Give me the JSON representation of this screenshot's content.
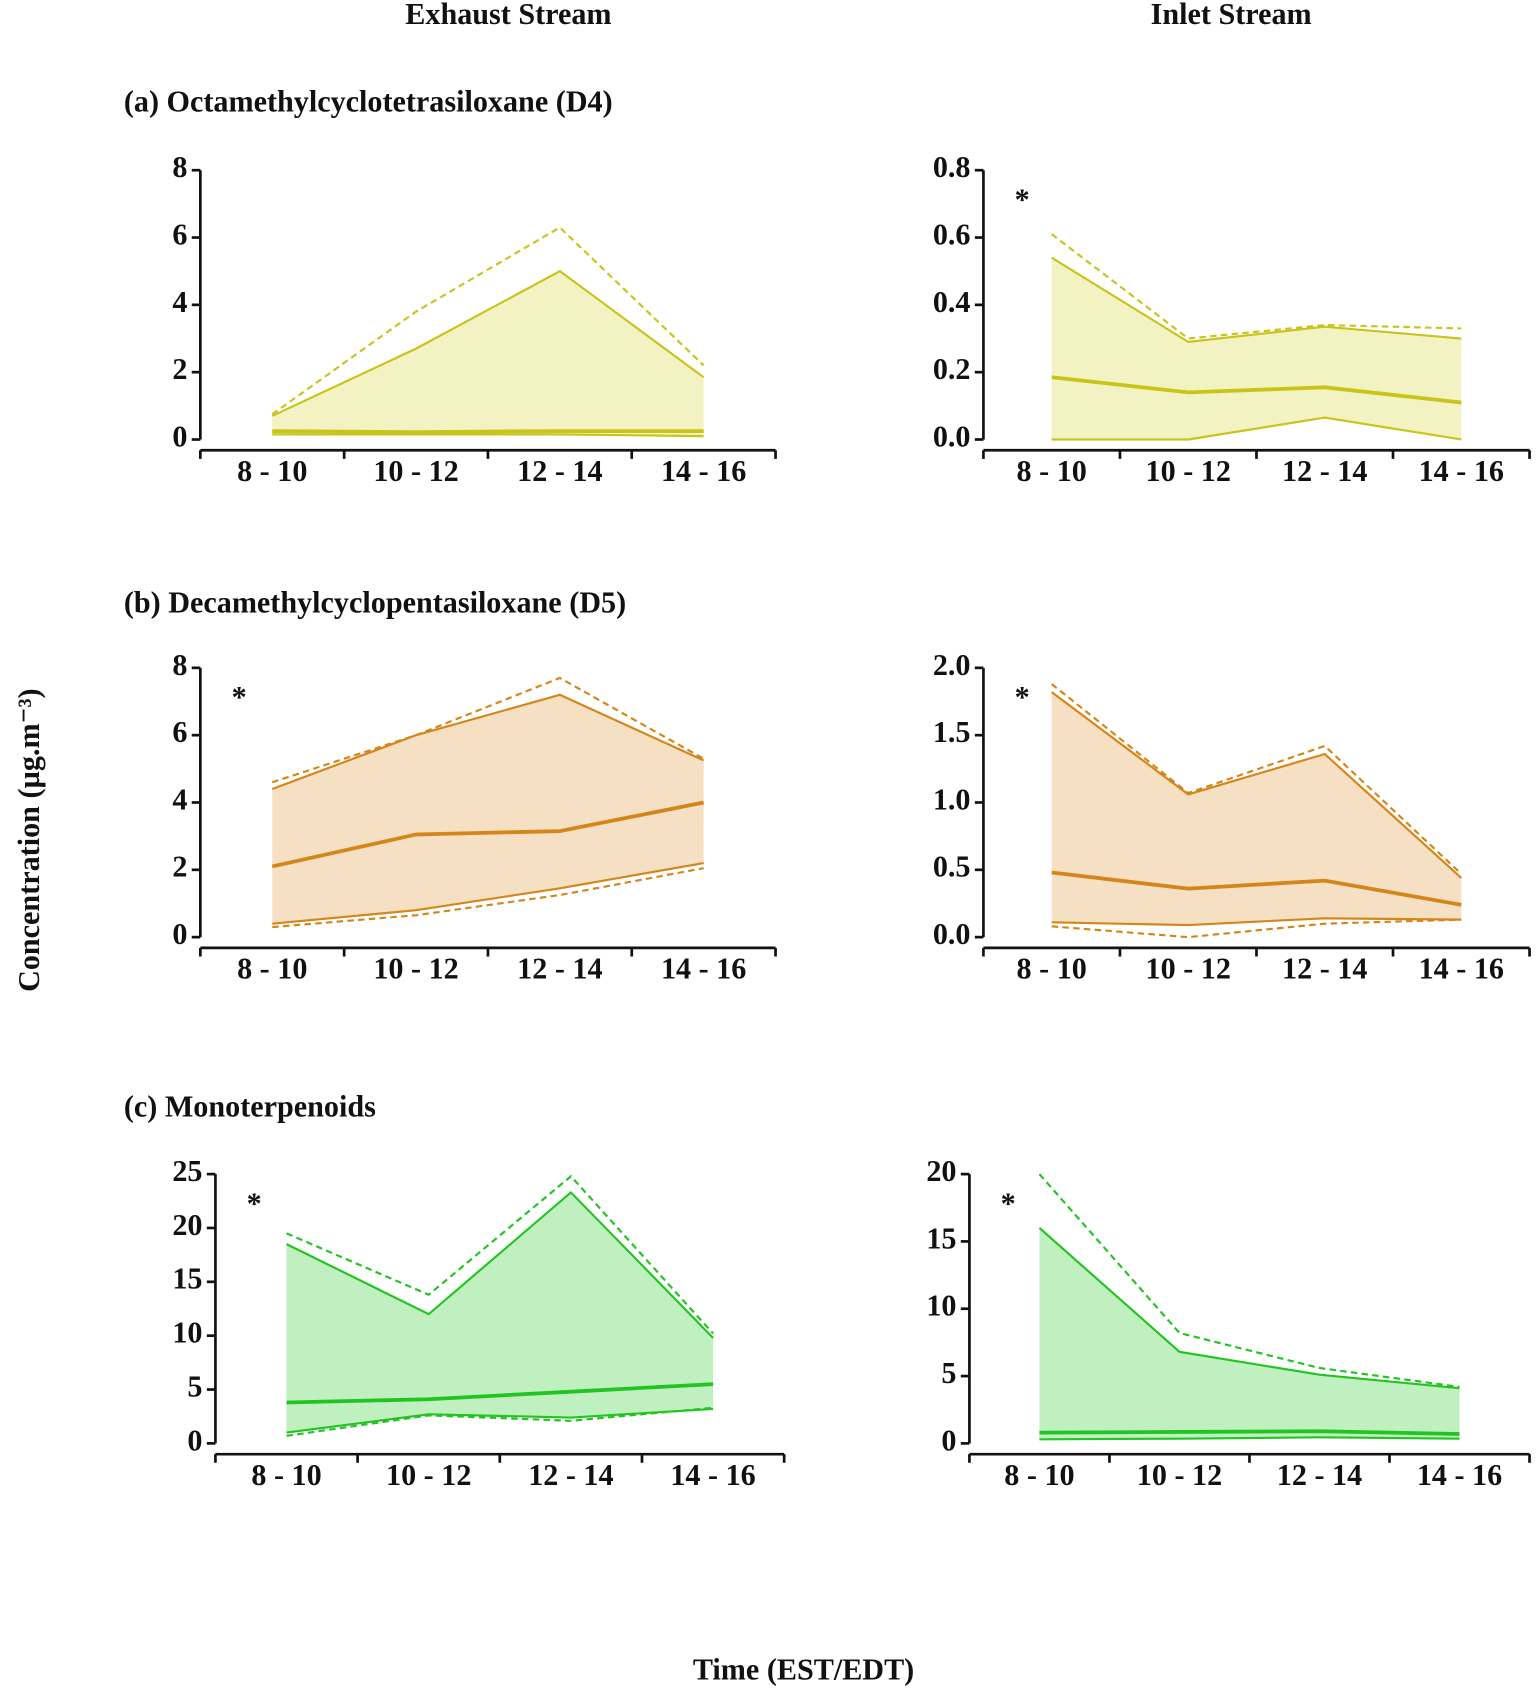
{
  "column_titles": [
    "Exhaust Stream",
    "Inlet Stream"
  ],
  "row_titles": [
    "(a) Octamethylcyclotetrasiloxane (D4)",
    "(b) Decamethylcyclopentasiloxane (D5)",
    "(c) Monoterpenoids"
  ],
  "y_label": "Concentration (µg.m⁻³)",
  "x_label": "Time (EST/EDT)",
  "chart_data": [
    {
      "type": "band",
      "categories": [
        "8 - 10",
        "10 - 12",
        "12 - 14",
        "14 - 16"
      ],
      "color": "#c8c41c",
      "fill_color": "#f3f2c2",
      "ylim": [
        0,
        8
      ],
      "yticks": [
        0,
        2,
        4,
        6,
        8
      ],
      "series": [
        {
          "line": "dashed",
          "values": [
            0.75,
            3.8,
            6.3,
            2.2
          ]
        },
        {
          "line": "solid",
          "bound": "upper",
          "values": [
            0.7,
            2.7,
            5.0,
            1.85
          ]
        },
        {
          "line": "bold",
          "values": [
            0.25,
            0.22,
            0.25,
            0.25
          ]
        },
        {
          "line": "solid",
          "bound": "lower",
          "values": [
            0.15,
            0.15,
            0.15,
            0.1
          ]
        }
      ]
    },
    {
      "type": "band",
      "categories": [
        "8 - 10",
        "10 - 12",
        "12 - 14",
        "14 - 16"
      ],
      "color": "#c8c41c",
      "fill_color": "#f3f2c2",
      "annotation": "*",
      "ylim": [
        0,
        0.8
      ],
      "yticks": [
        {
          "value": 0,
          "label": "0.0"
        },
        0.2,
        0.4,
        0.6,
        0.8
      ],
      "series": [
        {
          "line": "dashed",
          "values": [
            0.61,
            0.3,
            0.34,
            0.33
          ]
        },
        {
          "line": "solid",
          "bound": "upper",
          "values": [
            0.54,
            0.29,
            0.335,
            0.3
          ]
        },
        {
          "line": "bold",
          "values": [
            0.185,
            0.14,
            0.155,
            0.11
          ]
        },
        {
          "line": "solid",
          "bound": "lower",
          "values": [
            0.0,
            0.0,
            0.065,
            0.0
          ]
        }
      ]
    },
    {
      "type": "band",
      "categories": [
        "8 - 10",
        "10 - 12",
        "12 - 14",
        "14 - 16"
      ],
      "color": "#d4861a",
      "fill_color": "#f5e0c3",
      "annotation": "*",
      "ylim": [
        0,
        8
      ],
      "yticks": [
        0,
        2,
        4,
        6,
        8
      ],
      "series": [
        {
          "line": "dashed",
          "values": [
            4.6,
            6.0,
            7.7,
            5.3
          ]
        },
        {
          "line": "solid",
          "bound": "upper",
          "values": [
            4.4,
            6.0,
            7.2,
            5.25
          ]
        },
        {
          "line": "bold",
          "values": [
            2.1,
            3.05,
            3.15,
            4.0
          ]
        },
        {
          "line": "solid",
          "bound": "lower",
          "values": [
            0.4,
            0.8,
            1.45,
            2.2
          ]
        },
        {
          "line": "dashed",
          "values": [
            0.3,
            0.65,
            1.25,
            2.05
          ]
        }
      ]
    },
    {
      "type": "band",
      "categories": [
        "8 - 10",
        "10 - 12",
        "12 - 14",
        "14 - 16"
      ],
      "color": "#d4861a",
      "fill_color": "#f5e0c3",
      "annotation": "*",
      "ylim": [
        0,
        2
      ],
      "yticks": [
        {
          "value": 0,
          "label": "0.0"
        },
        0.5,
        {
          "value": 1,
          "label": "1.0"
        },
        1.5,
        {
          "value": 2,
          "label": "2.0"
        }
      ],
      "series": [
        {
          "line": "dashed",
          "values": [
            1.88,
            1.07,
            1.42,
            0.47
          ]
        },
        {
          "line": "solid",
          "bound": "upper",
          "values": [
            1.82,
            1.06,
            1.36,
            0.44
          ]
        },
        {
          "line": "bold",
          "values": [
            0.48,
            0.36,
            0.42,
            0.24
          ]
        },
        {
          "line": "solid",
          "bound": "lower",
          "values": [
            0.11,
            0.09,
            0.14,
            0.13
          ]
        },
        {
          "line": "dashed",
          "values": [
            0.08,
            0.0,
            0.1,
            0.13
          ]
        }
      ]
    },
    {
      "type": "band",
      "categories": [
        "8 - 10",
        "10 - 12",
        "12 - 14",
        "14 - 16"
      ],
      "color": "#22c422",
      "fill_color": "#c0f0c0",
      "annotation": "*",
      "ylim": [
        0,
        25
      ],
      "yticks": [
        0,
        5,
        10,
        15,
        20,
        25
      ],
      "series": [
        {
          "line": "dashed",
          "values": [
            19.5,
            13.8,
            24.8,
            10.2
          ]
        },
        {
          "line": "solid",
          "bound": "upper",
          "values": [
            18.5,
            12.0,
            23.3,
            9.8
          ]
        },
        {
          "line": "bold",
          "values": [
            3.8,
            4.1,
            4.8,
            5.5
          ]
        },
        {
          "line": "solid",
          "bound": "lower",
          "values": [
            1.0,
            2.7,
            2.4,
            3.2
          ]
        },
        {
          "line": "dashed",
          "values": [
            0.7,
            2.6,
            2.1,
            3.3
          ]
        }
      ]
    },
    {
      "type": "band",
      "categories": [
        "8 - 10",
        "10 - 12",
        "12 - 14",
        "14 - 16"
      ],
      "color": "#22c422",
      "fill_color": "#c0f0c0",
      "annotation": "*",
      "ylim": [
        0,
        20
      ],
      "yticks": [
        0,
        5,
        10,
        15,
        20
      ],
      "series": [
        {
          "line": "dashed",
          "values": [
            20,
            8.2,
            5.6,
            4.2
          ]
        },
        {
          "line": "solid",
          "bound": "upper",
          "values": [
            16,
            6.8,
            5.1,
            4.1
          ]
        },
        {
          "line": "bold",
          "values": [
            0.8,
            0.85,
            0.9,
            0.7
          ]
        },
        {
          "line": "solid",
          "bound": "lower",
          "values": [
            0.3,
            0.35,
            0.45,
            0.35
          ]
        }
      ]
    }
  ]
}
